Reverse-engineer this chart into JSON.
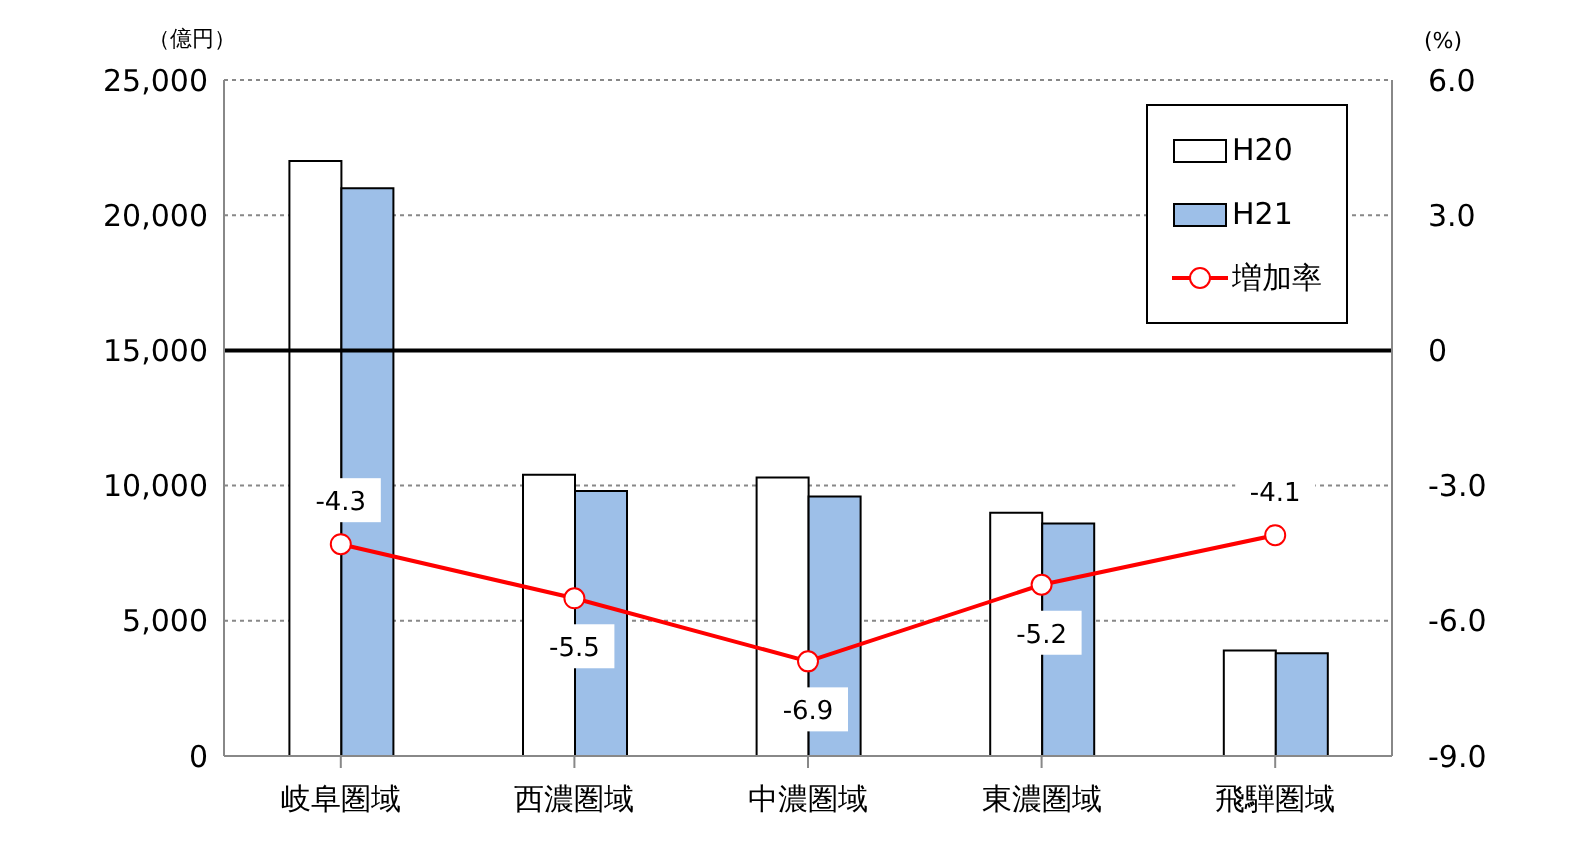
{
  "chart_data": {
    "type": "bar",
    "ylabel": "（億円）",
    "y2label": "(%)",
    "categories": [
      "岐阜圏域",
      "西濃圏域",
      "中濃圏域",
      "東濃圏域",
      "飛騨圏域"
    ],
    "series": [
      {
        "name": "H20",
        "color": "#ffffff",
        "values": [
          22000,
          10400,
          10300,
          9000,
          3900
        ]
      },
      {
        "name": "H21",
        "color": "#9dbfe8",
        "values": [
          21000,
          9800,
          9600,
          8600,
          3800
        ]
      },
      {
        "name": "増加率",
        "type": "line",
        "axis": "y2",
        "color": "#ff0000",
        "values": [
          -4.3,
          -5.5,
          -6.9,
          -5.2,
          -4.1
        ],
        "marker": "circle",
        "data_labels": true
      }
    ],
    "ylim": [
      0,
      25000
    ],
    "yticks": [
      0,
      {
        "value": 5000,
        "label": "5,000"
      },
      {
        "value": 10000,
        "label": "10,000"
      },
      {
        "value": 15000,
        "label": "15,000"
      },
      {
        "value": 20000,
        "label": "20,000"
      },
      {
        "value": 25000,
        "label": "25,000"
      }
    ],
    "y2lim": [
      -9,
      6
    ],
    "y2ticks": [
      {
        "value": -9,
        "label": "-9.0"
      },
      {
        "value": -6,
        "label": "-6.0"
      },
      {
        "value": -3,
        "label": "-3.0"
      },
      0,
      {
        "value": 3,
        "label": "3.0"
      },
      {
        "value": 6,
        "label": "6.0"
      }
    ],
    "ref_lines": [
      {
        "axis": "y2",
        "value": 0,
        "color": "#000000"
      }
    ],
    "grid": "y",
    "legend": "top right"
  }
}
